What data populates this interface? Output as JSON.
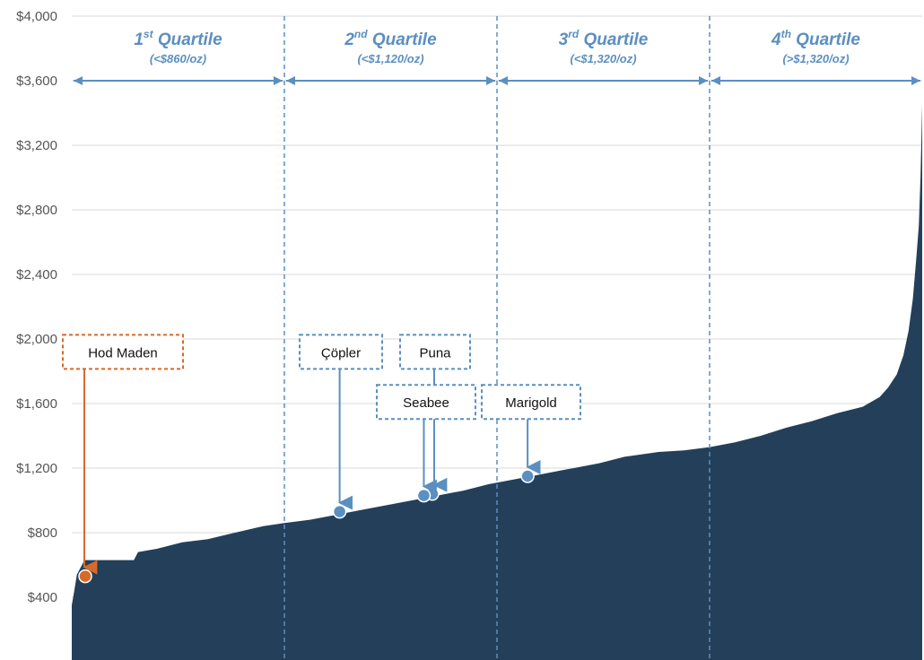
{
  "chart_data": {
    "type": "area",
    "description_free": true,
    "ylim": [
      0,
      4000
    ],
    "yticks": [
      0,
      400,
      800,
      1200,
      1600,
      2000,
      2400,
      2800,
      3200,
      3600,
      4000
    ],
    "ytick_labels": [
      "",
      "$400",
      "$800",
      "$1,200",
      "$1,600",
      "$2,000",
      "$2,400",
      "$2,800",
      "$3,200",
      "$3,600",
      "$4,000"
    ],
    "grid": true,
    "fill_color": "#243f5a",
    "quartiles": [
      {
        "sup": "st",
        "num": "1",
        "word": "Quartile",
        "threshold": "(<$860/oz)"
      },
      {
        "sup": "nd",
        "num": "2",
        "word": "Quartile",
        "threshold": "(<$1,120/oz)"
      },
      {
        "sup": "rd",
        "num": "3",
        "word": "Quartile",
        "threshold": "(<$1,320/oz)"
      },
      {
        "sup": "th",
        "num": "4",
        "word": "Quartile",
        "threshold": "(>$1,320/oz)"
      }
    ],
    "quartile_bounds_pct": [
      0,
      25,
      50,
      75,
      100
    ],
    "curve": [
      [
        0,
        350
      ],
      [
        0.3,
        440
      ],
      [
        0.6,
        540
      ],
      [
        1.5,
        630
      ],
      [
        7.3,
        630
      ],
      [
        7.8,
        680
      ],
      [
        10,
        700
      ],
      [
        13,
        740
      ],
      [
        16,
        760
      ],
      [
        20,
        810
      ],
      [
        22.5,
        840
      ],
      [
        25,
        860
      ],
      [
        28,
        880
      ],
      [
        31,
        910
      ],
      [
        34,
        940
      ],
      [
        37,
        970
      ],
      [
        40,
        1000
      ],
      [
        43,
        1030
      ],
      [
        46,
        1060
      ],
      [
        49,
        1100
      ],
      [
        52,
        1130
      ],
      [
        55,
        1160
      ],
      [
        58,
        1190
      ],
      [
        62,
        1230
      ],
      [
        65,
        1270
      ],
      [
        69,
        1300
      ],
      [
        72,
        1310
      ],
      [
        75,
        1330
      ],
      [
        78,
        1360
      ],
      [
        81,
        1400
      ],
      [
        84,
        1450
      ],
      [
        87,
        1490
      ],
      [
        90,
        1540
      ],
      [
        93,
        1580
      ],
      [
        95,
        1640
      ],
      [
        96,
        1700
      ],
      [
        97,
        1780
      ],
      [
        97.8,
        1900
      ],
      [
        98.4,
        2050
      ],
      [
        98.9,
        2250
      ],
      [
        99.3,
        2500
      ],
      [
        99.6,
        2700
      ],
      [
        99.8,
        3000
      ],
      [
        100,
        3450
      ]
    ],
    "projects": [
      {
        "name": "Hod Maden",
        "pct": 1.5,
        "value": 530,
        "color": "#d66a2a",
        "label_y_value": 1920,
        "label_x_pct": -1
      },
      {
        "name": "Çöpler",
        "pct": 31.5,
        "value": 930,
        "color": "#5b8fc0",
        "label_y_value": 1920,
        "label_x_pct": 31.5
      },
      {
        "name": "Puna",
        "pct": 42.4,
        "value": 1040,
        "color": "#5b8fc0",
        "label_y_value": 1920,
        "label_x_pct": 42
      },
      {
        "name": "Seabee",
        "pct": 41.4,
        "value": 1030,
        "color": "#5b8fc0",
        "label_y_value": 1610,
        "label_x_pct": 41
      },
      {
        "name": "Marigold",
        "pct": 53.6,
        "value": 1150,
        "color": "#5b8fc0",
        "label_y_value": 1610,
        "label_x_pct": 53.6
      }
    ]
  }
}
